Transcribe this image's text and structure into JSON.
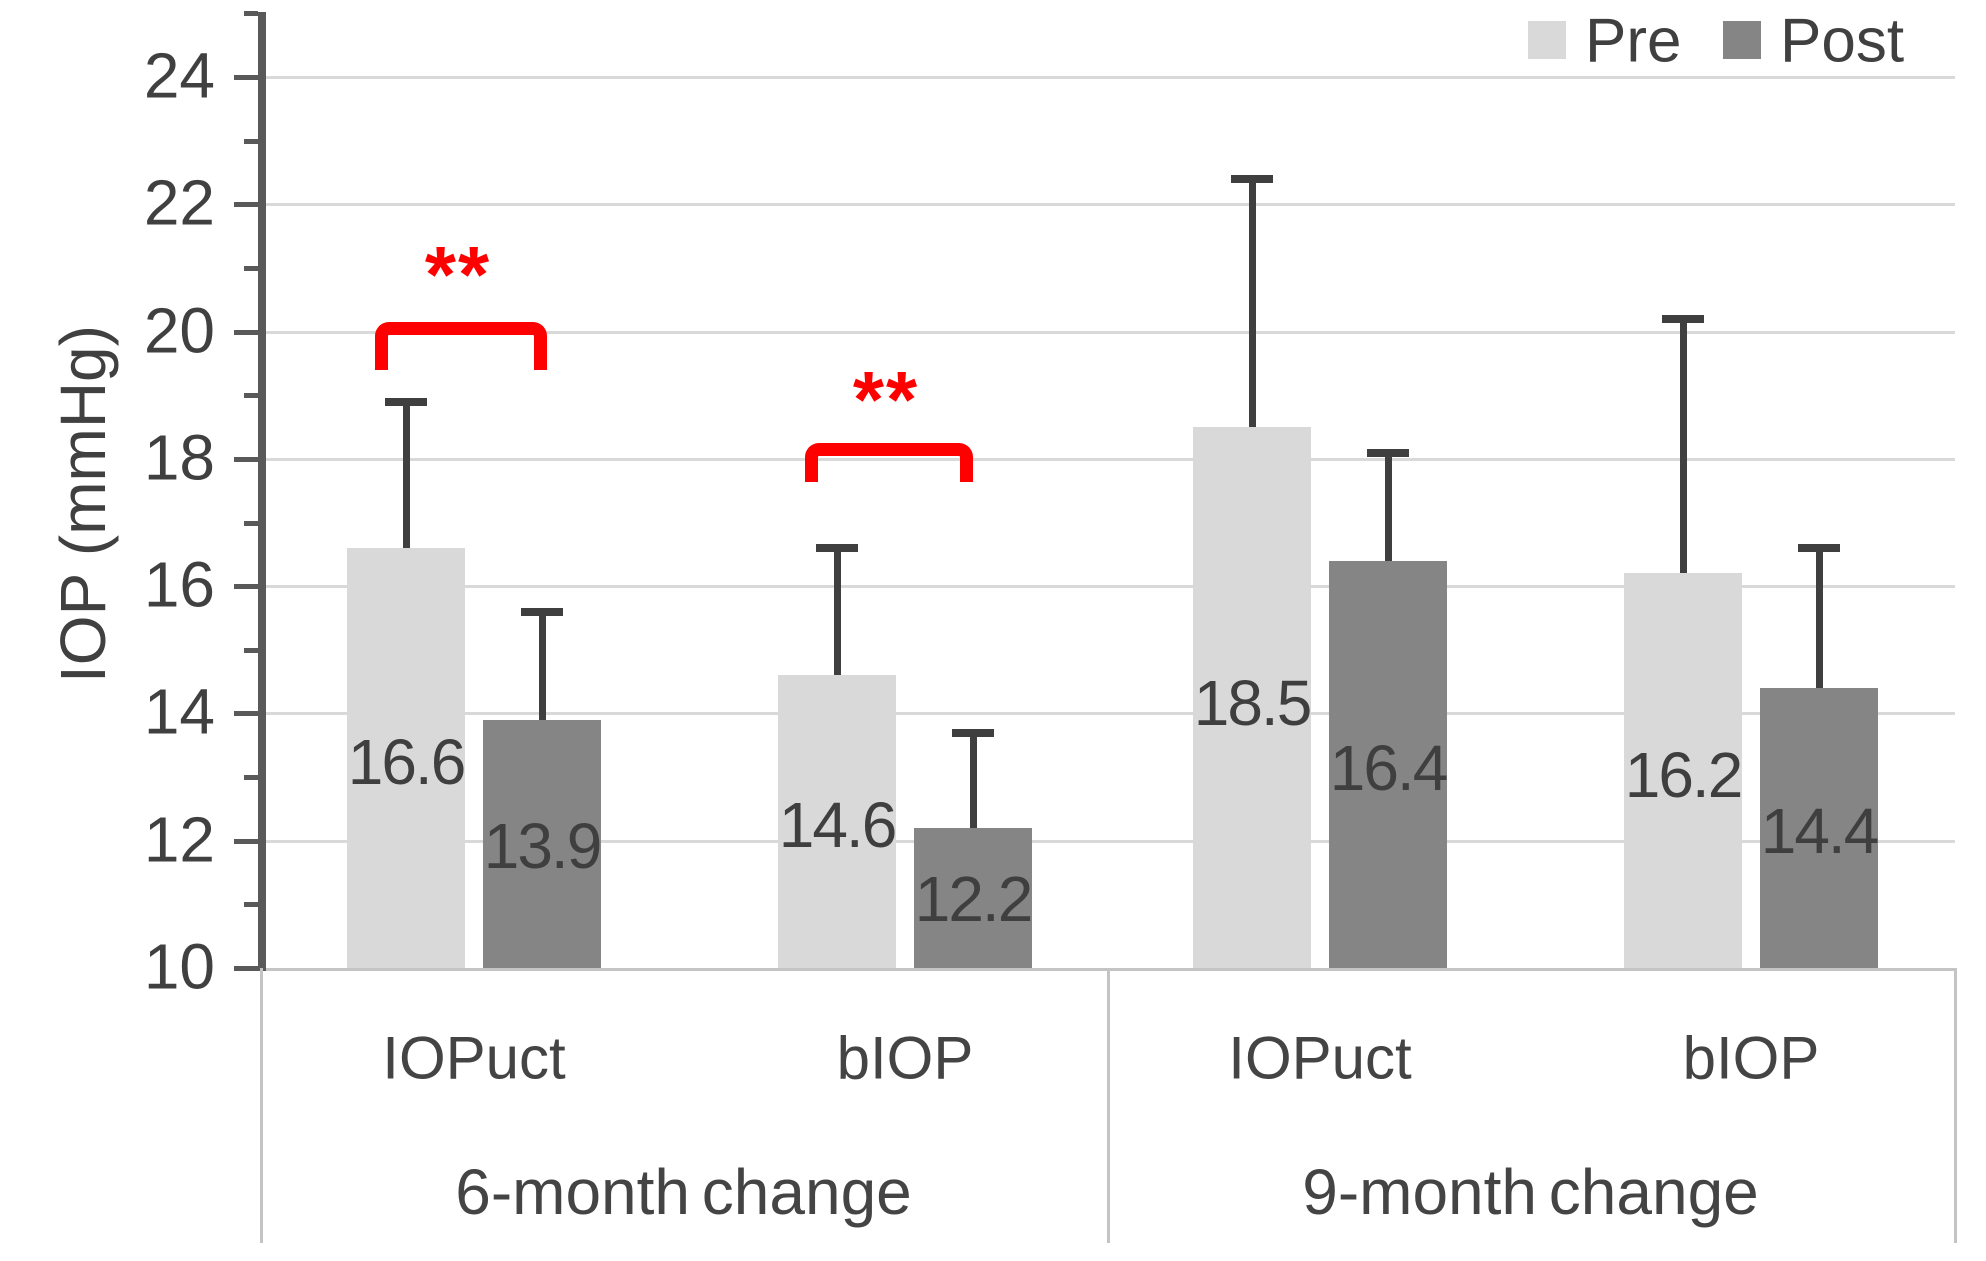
{
  "y_axis": {
    "title": "IOP (mmHg)",
    "tick_labels": [
      "10",
      "12",
      "14",
      "16",
      "18",
      "20",
      "22",
      "24"
    ]
  },
  "chart_data": {
    "type": "bar",
    "title": "",
    "xlabel": "",
    "ylabel": "IOP (mmHg)",
    "ylim": [
      10,
      25
    ],
    "grid": "horizontal, at even values 12-24",
    "legend_position": "top-right",
    "legend": [
      {
        "name": "Pre",
        "color": "#d9d9d9"
      },
      {
        "name": "Post",
        "color": "#858585"
      }
    ],
    "value_axis_ticks": [
      10,
      12,
      14,
      16,
      18,
      20,
      22,
      24
    ],
    "minor_ticks": [
      11,
      13,
      15,
      17,
      19,
      21,
      23,
      25
    ],
    "groups": [
      {
        "label": "6-month change",
        "categories": [
          {
            "label": "IOPuct",
            "pre": 16.6,
            "pre_err_top": 18.9,
            "post": 13.9,
            "post_err_top": 15.6,
            "significance": "**"
          },
          {
            "label": "bIOP",
            "pre": 14.6,
            "pre_err_top": 16.6,
            "post": 12.2,
            "post_err_top": 13.7,
            "significance": "**"
          }
        ]
      },
      {
        "label": "9-month change",
        "categories": [
          {
            "label": "IOPuct",
            "pre": 18.5,
            "pre_err_top": 22.4,
            "post": 16.4,
            "post_err_top": 18.1,
            "significance": null
          },
          {
            "label": "bIOP",
            "pre": 16.2,
            "pre_err_top": 20.2,
            "post": 14.4,
            "post_err_top": 16.6,
            "significance": null
          }
        ]
      }
    ],
    "annotations": {
      "significance_symbol_color": "#ff0000"
    }
  }
}
